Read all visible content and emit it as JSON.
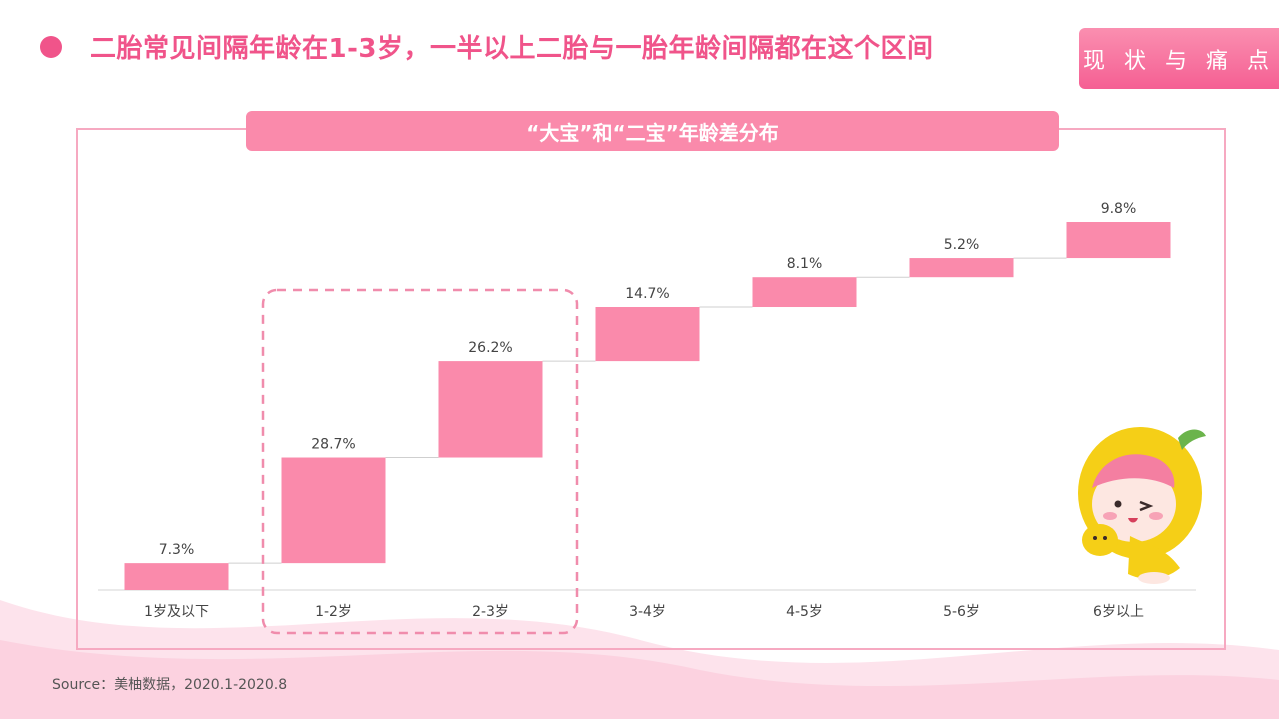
{
  "header": {
    "headline": "二胎常见间隔年龄在1-3岁，一半以上二胎与一胎年龄间隔都在这个区间",
    "badge": "现 状 与 痛 点"
  },
  "panel": {
    "title": "“大宝”和“二宝”年龄差分布"
  },
  "colors": {
    "accent": "#f0548a",
    "bar": "#fa8aab",
    "highlight_border": "#f08cac"
  },
  "chart_data": {
    "type": "bar",
    "subtype": "waterfall",
    "title": "“大宝”和“二宝”年龄差分布",
    "categories": [
      "1岁及以下",
      "1-2岁",
      "2-3岁",
      "3-4岁",
      "4-5岁",
      "5-6岁",
      "6岁以上"
    ],
    "values": [
      7.3,
      28.7,
      26.2,
      14.7,
      8.1,
      5.2,
      9.8
    ],
    "labels": [
      "7.3%",
      "28.7%",
      "26.2%",
      "14.7%",
      "8.1%",
      "5.2%",
      "9.8%"
    ],
    "unit": "%",
    "ylim": [
      0,
      100
    ],
    "highlighted_categories": [
      "1-2岁",
      "2-3岁"
    ],
    "grid": false,
    "legend": "none"
  },
  "footer": {
    "source": "Source：美柚数据，2020.1-2020.8"
  },
  "mascot": {
    "icon": "cartoon-mascot-icon"
  }
}
